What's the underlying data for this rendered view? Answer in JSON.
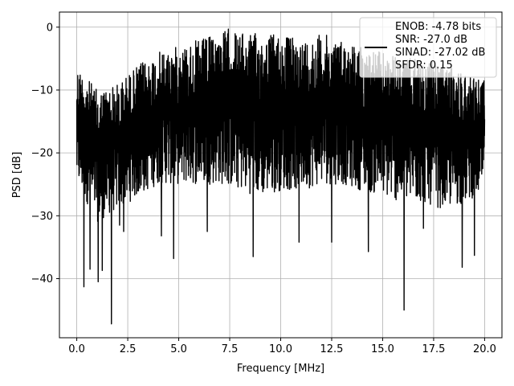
{
  "chart_data": {
    "type": "line",
    "title": "",
    "xlabel": "Frequency [MHz]",
    "ylabel": "PSD [dB]",
    "xlim": [
      -0.85,
      20.85
    ],
    "ylim": [
      -49.4,
      2.4
    ],
    "xticks": [
      0.0,
      2.5,
      5.0,
      7.5,
      10.0,
      12.5,
      15.0,
      17.5,
      20.0
    ],
    "xtick_labels": [
      "0.0",
      "2.5",
      "5.0",
      "7.5",
      "10.0",
      "12.5",
      "15.0",
      "17.5",
      "20.0"
    ],
    "yticks": [
      0,
      -10,
      -20,
      -30,
      -40
    ],
    "ytick_labels": [
      "0",
      "−10",
      "−20",
      "−30",
      "−40"
    ],
    "grid": true,
    "legend_position": "top-right",
    "legend_entries": [
      "ENOB: -4.78 bits",
      "SNR: -27.0 dB",
      "SINAD: -27.02 dB",
      "SFDR: 0.15"
    ],
    "line_color": "#000000",
    "series": [
      {
        "description": "noise PSD from 0 to 20 MHz; downward spikes listed as [freq_MHz, dB]",
        "x_range": [
          0,
          20
        ],
        "envelope_upper": [
          [
            0,
            -6
          ],
          [
            1,
            -10
          ],
          [
            2,
            -9
          ],
          [
            3,
            -6
          ],
          [
            4,
            -4
          ],
          [
            5,
            -3
          ],
          [
            6,
            -2
          ],
          [
            7,
            -1
          ],
          [
            7.5,
            0
          ],
          [
            8,
            -1
          ],
          [
            9,
            -1
          ],
          [
            10,
            -1
          ],
          [
            11,
            -2
          ],
          [
            12,
            -1
          ],
          [
            13,
            -2
          ],
          [
            14,
            -3
          ],
          [
            15,
            -4
          ],
          [
            16,
            -5
          ],
          [
            17,
            -5
          ],
          [
            18,
            -6
          ],
          [
            19,
            -7
          ],
          [
            20,
            -8
          ]
        ],
        "envelope_lower": [
          [
            0,
            -25
          ],
          [
            1,
            -31
          ],
          [
            2,
            -29
          ],
          [
            3,
            -27
          ],
          [
            4,
            -25
          ],
          [
            5,
            -25
          ],
          [
            6,
            -25
          ],
          [
            7,
            -25
          ],
          [
            8,
            -26
          ],
          [
            9,
            -27
          ],
          [
            10,
            -26
          ],
          [
            11,
            -26
          ],
          [
            12,
            -25
          ],
          [
            13,
            -25
          ],
          [
            14,
            -26
          ],
          [
            15,
            -27
          ],
          [
            16,
            -28
          ],
          [
            17,
            -28
          ],
          [
            18,
            -29
          ],
          [
            19,
            -28
          ],
          [
            20,
            -26
          ]
        ],
        "dips": [
          [
            0.35,
            -41.3
          ],
          [
            0.65,
            -38.5
          ],
          [
            1.05,
            -40.5
          ],
          [
            1.25,
            -38.7
          ],
          [
            1.7,
            -47.2
          ],
          [
            2.1,
            -31.5
          ],
          [
            2.3,
            -32.5
          ],
          [
            4.15,
            -33.2
          ],
          [
            4.75,
            -36.8
          ],
          [
            6.4,
            -32.5
          ],
          [
            8.65,
            -36.5
          ],
          [
            10.9,
            -34.2
          ],
          [
            12.5,
            -34.2
          ],
          [
            14.3,
            -35.7
          ],
          [
            16.05,
            -45.0
          ],
          [
            17.0,
            -32.0
          ],
          [
            18.9,
            -38.2
          ],
          [
            19.5,
            -36.3
          ]
        ]
      }
    ]
  }
}
